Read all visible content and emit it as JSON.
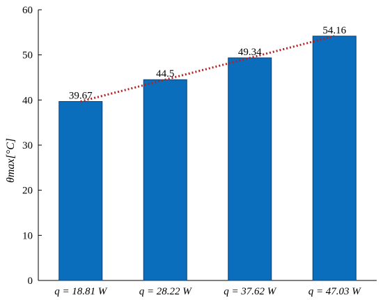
{
  "chart_data": {
    "type": "bar",
    "categories": [
      "q = 18.81 W",
      "q = 28.22 W",
      "q = 37.62 W",
      "q = 47.03 W"
    ],
    "values": [
      39.67,
      44.5,
      49.34,
      54.16
    ],
    "data_labels": [
      "39.67",
      "44.5",
      "49.34",
      "54.16"
    ],
    "title": "",
    "xlabel": "",
    "ylabel": "θmax[°C]",
    "ylim": [
      0,
      60
    ],
    "yticks": [
      0,
      10,
      20,
      30,
      40,
      50,
      60
    ],
    "grid": false,
    "trendline": {
      "type": "linear",
      "style": "dotted",
      "color": "#b22222"
    },
    "colors": {
      "bar": "#0a6ebd",
      "bar_edge": "#0a3f73",
      "axis": "#000000"
    }
  }
}
